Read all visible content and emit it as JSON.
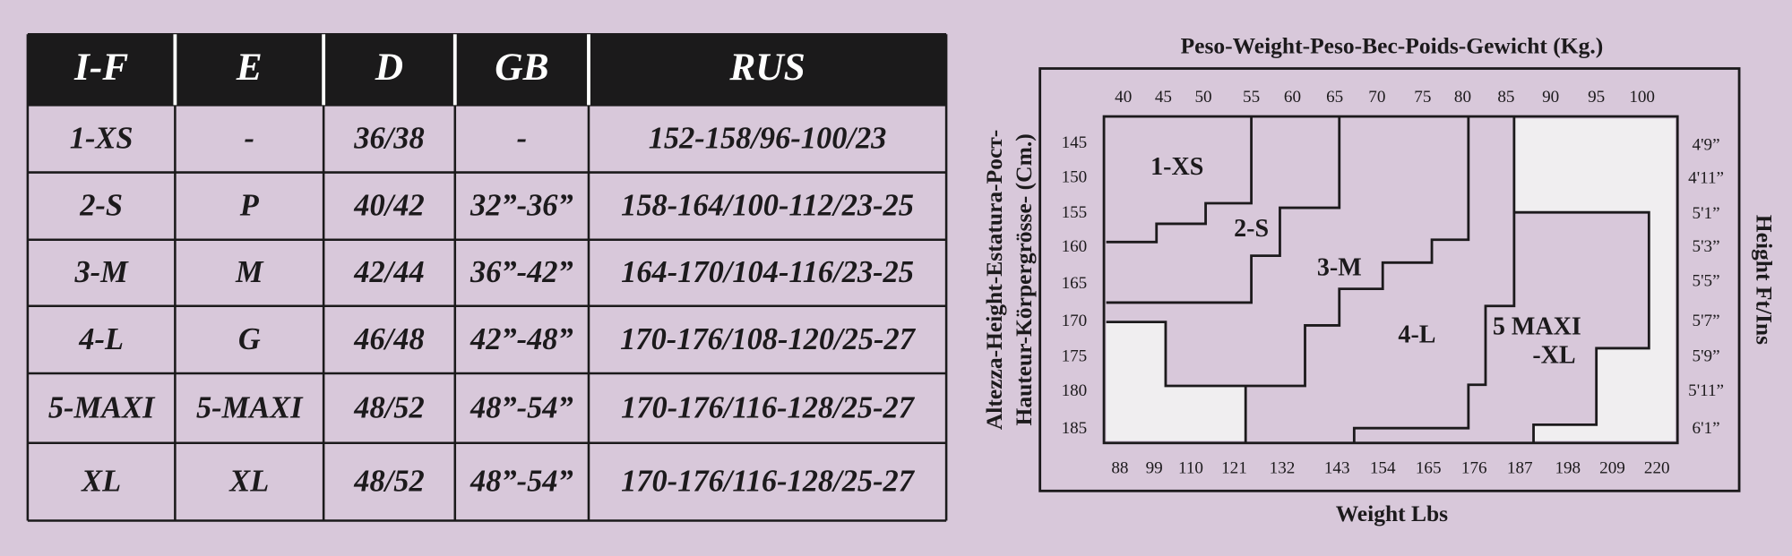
{
  "table": {
    "headers": [
      "I-F",
      "E",
      "D",
      "GB",
      "RUS"
    ],
    "rows": [
      [
        "1-XS",
        "-",
        "36/38",
        "-",
        "152-158/96-100/23"
      ],
      [
        "2-S",
        "P",
        "40/42",
        "32”-36”",
        "158-164/100-112/23-25"
      ],
      [
        "3-M",
        "M",
        "42/44",
        "36”-42”",
        "164-170/104-116/23-25"
      ],
      [
        "4-L",
        "G",
        "46/48",
        "42”-48”",
        "170-176/108-120/25-27"
      ],
      [
        "5-MAXI",
        "5-MAXI",
        "48/52",
        "48”-54”",
        "170-176/116-128/25-27"
      ],
      [
        "XL",
        "XL",
        "48/52",
        "48”-54”",
        "170-176/116-128/25-27"
      ]
    ]
  },
  "size_chart": {
    "title_top": "Peso-Weight-Peso-Bec-Poids-Gewicht (Kg.)",
    "title_bottom": "Weight Lbs",
    "title_left": [
      "Altezza-Height-Estatura-Pocт-",
      "Hauteur-Körpergrösse- (Cm.)"
    ],
    "title_right": "Height Ft/Ins",
    "weight_kg": [
      "40",
      "45",
      "50",
      "55",
      "60",
      "65",
      "70",
      "75",
      "80",
      "85",
      "90",
      "95",
      "100"
    ],
    "weight_lbs": [
      "88",
      "99",
      "110",
      "121",
      "132",
      "143",
      "154",
      "165",
      "176",
      "187",
      "198",
      "209",
      "220"
    ],
    "height_cm": [
      "145",
      "150",
      "155",
      "160",
      "165",
      "170",
      "175",
      "180",
      "185"
    ],
    "height_ft_ins": [
      "4'9”",
      "4'11”",
      "5'1”",
      "5'3”",
      "5'5”",
      "5'7”",
      "5'9”",
      "5'11”",
      "6'1”"
    ],
    "regions": [
      "1-XS",
      "2-S",
      "3-M",
      "4-L",
      "5 MAXI",
      "-XL"
    ]
  }
}
